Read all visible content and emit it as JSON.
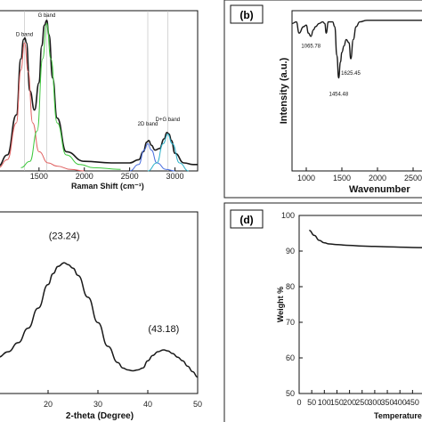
{
  "chart_data": [
    {
      "type": "line",
      "panel": "a",
      "xlabel": "Raman Shift (cm⁻¹)",
      "ylabel": "",
      "xlim": [
        1050,
        3250
      ],
      "ylim": [
        0,
        1.0
      ],
      "xticks": [
        1500,
        2000,
        2500,
        3000
      ],
      "grid": false,
      "annotations": [
        {
          "text": "D band",
          "x": 1340,
          "y": 0.82
        },
        {
          "text": "G band",
          "x": 1585,
          "y": 0.94
        },
        {
          "text": "2D band",
          "x": 2700,
          "y": 0.26
        },
        {
          "text": "D+G band",
          "x": 2920,
          "y": 0.29
        }
      ],
      "reference_lines_x": [
        1340,
        1585,
        2700,
        2920
      ],
      "series": [
        {
          "role": "measured",
          "color": "#1a1a1a",
          "x": [
            1050,
            1150,
            1250,
            1300,
            1330,
            1345,
            1360,
            1400,
            1450,
            1500,
            1530,
            1560,
            1585,
            1610,
            1650,
            1700,
            1800,
            2000,
            2300,
            2500,
            2600,
            2650,
            2690,
            2710,
            2740,
            2780,
            2830,
            2880,
            2910,
            2935,
            2960,
            3000,
            3100,
            3200,
            3250
          ],
          "y": [
            0.03,
            0.1,
            0.35,
            0.7,
            0.82,
            0.83,
            0.8,
            0.5,
            0.38,
            0.55,
            0.78,
            0.91,
            0.94,
            0.85,
            0.58,
            0.33,
            0.12,
            0.06,
            0.05,
            0.05,
            0.07,
            0.12,
            0.18,
            0.19,
            0.16,
            0.13,
            0.14,
            0.2,
            0.24,
            0.23,
            0.19,
            0.11,
            0.05,
            0.04,
            0.04
          ]
        },
        {
          "role": "D fit",
          "color": "#e06060",
          "x": [
            1050,
            1150,
            1250,
            1300,
            1340,
            1380,
            1430,
            1500,
            1600,
            1700,
            1850,
            2000
          ],
          "y": [
            0.02,
            0.07,
            0.3,
            0.63,
            0.8,
            0.62,
            0.3,
            0.12,
            0.05,
            0.03,
            0.01,
            0.0
          ]
        },
        {
          "role": "G fit",
          "color": "#3cc83c",
          "x": [
            1300,
            1400,
            1480,
            1540,
            1585,
            1630,
            1700,
            1800,
            1950,
            2100,
            2400
          ],
          "y": [
            0.02,
            0.06,
            0.25,
            0.7,
            0.92,
            0.7,
            0.3,
            0.1,
            0.04,
            0.02,
            0.01
          ]
        },
        {
          "role": "2D fit",
          "color": "#4a6fe0",
          "x": [
            2500,
            2600,
            2660,
            2700,
            2740,
            2800,
            2900,
            3000
          ],
          "y": [
            0.0,
            0.04,
            0.13,
            0.17,
            0.13,
            0.05,
            0.01,
            0.0
          ]
        },
        {
          "role": "D+G fit",
          "color": "#2ab0c8",
          "x": [
            2700,
            2800,
            2870,
            2920,
            2970,
            3050,
            3150
          ],
          "y": [
            0.0,
            0.05,
            0.17,
            0.23,
            0.17,
            0.05,
            0.0
          ]
        }
      ]
    },
    {
      "type": "line",
      "panel": "b",
      "panel_label": "(b)",
      "xlabel": "Wavenumber",
      "ylabel": "Intensity (a.u.)",
      "xlim": [
        800,
        2800
      ],
      "xticks": [
        1000,
        1500,
        2000,
        2500
      ],
      "ylim": [
        0,
        1.0
      ],
      "annotations": [
        {
          "text": "1065.78",
          "x": 1065.78,
          "y": 0.82
        },
        {
          "text": "1454.48",
          "x": 1454.48,
          "y": 0.52
        },
        {
          "text": "1625.45",
          "x": 1625.45,
          "y": 0.65
        }
      ],
      "series": [
        {
          "color": "#1a1a1a",
          "x": [
            800,
            860,
            900,
            960,
            1000,
            1030,
            1065.78,
            1100,
            1130,
            1180,
            1230,
            1260,
            1280,
            1310,
            1340,
            1370,
            1400,
            1430,
            1454.48,
            1480,
            1500,
            1530,
            1560,
            1600,
            1625.45,
            1660,
            1700,
            1750,
            1850,
            1950,
            2100,
            2300,
            2500,
            2700,
            2800
          ],
          "y": [
            0.92,
            0.93,
            0.86,
            0.9,
            0.91,
            0.86,
            0.84,
            0.88,
            0.9,
            0.92,
            0.93,
            0.92,
            0.86,
            0.93,
            0.93,
            0.93,
            0.9,
            0.72,
            0.58,
            0.68,
            0.74,
            0.78,
            0.82,
            0.8,
            0.7,
            0.82,
            0.9,
            0.93,
            0.94,
            0.94,
            0.94,
            0.94,
            0.94,
            0.94,
            0.94
          ]
        }
      ]
    },
    {
      "type": "line",
      "panel": "c",
      "xlabel": "2-theta (Degree)",
      "ylabel": "",
      "xlim": [
        10,
        50
      ],
      "xticks": [
        20,
        30,
        40,
        50
      ],
      "ylim": [
        0,
        1.0
      ],
      "annotations": [
        {
          "text": "(23.24)",
          "x": 23.24,
          "y": 0.82
        },
        {
          "text": "(43.18)",
          "x": 43.18,
          "y": 0.31
        }
      ],
      "series": [
        {
          "color": "#1a1a1a",
          "x": [
            10,
            12,
            14,
            16,
            18,
            20,
            21,
            22,
            23.24,
            24,
            25,
            26,
            28,
            30,
            32,
            34,
            35,
            36,
            37,
            38,
            39,
            40,
            41,
            42,
            43.18,
            44,
            45,
            46,
            47,
            48,
            49,
            50
          ],
          "y": [
            0.2,
            0.23,
            0.28,
            0.36,
            0.47,
            0.6,
            0.66,
            0.7,
            0.72,
            0.71,
            0.69,
            0.65,
            0.53,
            0.39,
            0.26,
            0.17,
            0.14,
            0.13,
            0.125,
            0.13,
            0.14,
            0.18,
            0.21,
            0.23,
            0.24,
            0.235,
            0.22,
            0.2,
            0.18,
            0.15,
            0.12,
            0.09
          ]
        }
      ]
    },
    {
      "type": "line",
      "panel": "d",
      "panel_label": "(d)",
      "xlabel": "Temperature",
      "ylabel": "Weight %",
      "xlim": [
        0,
        530
      ],
      "xticks": [
        0,
        50,
        100,
        150,
        200,
        250,
        300,
        350,
        400,
        450
      ],
      "ylim": [
        50,
        100
      ],
      "yticks": [
        50,
        60,
        70,
        80,
        90,
        100
      ],
      "series": [
        {
          "color": "#1a1a1a",
          "x": [
            40,
            60,
            80,
            100,
            120,
            150,
            200,
            250,
            300,
            350,
            400,
            450,
            500,
            530
          ],
          "y": [
            95.8,
            94.4,
            93.0,
            92.3,
            92.0,
            91.8,
            91.6,
            91.4,
            91.3,
            91.2,
            91.1,
            91.0,
            90.95,
            90.9
          ]
        }
      ]
    }
  ]
}
